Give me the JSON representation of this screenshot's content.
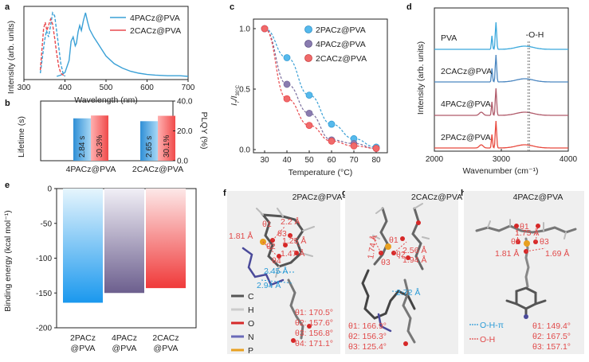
{
  "colors": {
    "blue": "#3aa0d6",
    "red": "#e8494e",
    "purple": "#7a6d9e",
    "blue_marker": "#55b9ec",
    "purple_marker": "#8a7cb0",
    "red_marker": "#f06a6a",
    "pva_line": "#3aa8dc",
    "cacz_line": "#4a86c0",
    "pacz4_line": "#b05a6a",
    "pacz2_line": "#e8493e"
  },
  "panels": {
    "a": "a",
    "b": "b",
    "c": "c",
    "d": "d",
    "e": "e",
    "f": "f",
    "g": "g",
    "h": "h"
  },
  "chart_data": [
    {
      "id": "a",
      "type": "line",
      "ylabel": "Intensity (arb. units)",
      "xlabel": "Wavelength (nm)",
      "xlim": [
        300,
        700
      ],
      "xticks": [
        "300",
        "400",
        "500",
        "600",
        "700"
      ],
      "legend": [
        "4PACz@PVA",
        "2CACz@PVA"
      ],
      "series": [
        {
          "name": "4PACz@PVA (emission)",
          "style": "solid",
          "color": "#3aa0d6",
          "x": [
            380,
            390,
            400,
            410,
            415,
            420,
            425,
            428,
            432,
            436,
            440,
            445,
            450,
            455,
            460,
            470,
            480,
            490,
            500,
            520,
            540,
            560,
            580,
            600,
            620,
            650,
            680,
            700
          ],
          "y": [
            0.0,
            0.02,
            0.06,
            0.25,
            0.55,
            0.62,
            0.48,
            0.52,
            0.7,
            0.8,
            0.72,
            0.88,
            1.0,
            0.86,
            0.74,
            0.62,
            0.52,
            0.42,
            0.32,
            0.2,
            0.13,
            0.08,
            0.05,
            0.03,
            0.02,
            0.01,
            0.01,
            0.0
          ]
        },
        {
          "name": "4PACz@PVA (excitation)",
          "style": "dashed",
          "color": "#3aa0d6",
          "x": [
            340,
            350,
            355,
            360,
            365,
            370,
            375,
            380,
            385,
            390,
            395,
            400
          ],
          "y": [
            0.05,
            0.55,
            0.72,
            0.62,
            0.8,
            1.0,
            0.95,
            0.7,
            0.45,
            0.2,
            0.06,
            0.0
          ]
        },
        {
          "name": "2CACz@PVA (excitation)",
          "style": "dashed",
          "color": "#e8494e",
          "x": [
            340,
            348,
            352,
            356,
            360,
            365,
            370,
            375,
            380,
            385,
            390,
            400
          ],
          "y": [
            0.1,
            0.75,
            0.85,
            0.72,
            0.8,
            0.9,
            0.82,
            0.6,
            0.35,
            0.15,
            0.05,
            0.0
          ]
        }
      ]
    },
    {
      "id": "b",
      "type": "bar",
      "ylabel_left": "Lifetime (s)",
      "ylabel_right": "PLQY (%)",
      "categories": [
        "4PACz@PVA",
        "2CACz@PVA"
      ],
      "lifetime": [
        2.84,
        2.65
      ],
      "plqy": [
        30.3,
        30.1
      ],
      "lifetime_labels": [
        "2.84 s",
        "2.65 s"
      ],
      "plqy_labels": [
        "30.3%",
        "30.1%"
      ],
      "ylim_left": [
        0,
        4
      ],
      "ylim_right": [
        0,
        40
      ],
      "yticks_right": [
        "0.0",
        "20.0",
        "40.0"
      ]
    },
    {
      "id": "c",
      "type": "scatter",
      "ylabel_main": "I",
      "ylabel_sub": "T",
      "ylabel_mid": "/I",
      "ylabel_sub2": "30°C",
      "xlabel": "Temperature (°C)",
      "xlim": [
        25,
        85
      ],
      "ylim": [
        0,
        1.0
      ],
      "xticks": [
        "30",
        "40",
        "50",
        "60",
        "70",
        "80"
      ],
      "yticks": [
        "0.0",
        "0.5",
        "1.0"
      ],
      "x": [
        30,
        40,
        50,
        60,
        70,
        80
      ],
      "series": [
        {
          "name": "2PACz@PVA",
          "values": [
            1.0,
            0.76,
            0.45,
            0.21,
            0.09,
            0.02
          ]
        },
        {
          "name": "4PACz@PVA",
          "values": [
            1.0,
            0.54,
            0.3,
            0.08,
            0.05,
            0.01
          ]
        },
        {
          "name": "2CACz@PVA",
          "values": [
            1.0,
            0.42,
            0.2,
            0.07,
            0.03,
            0.01
          ]
        }
      ]
    },
    {
      "id": "d",
      "type": "line",
      "ylabel": "Intensity (arb. units)",
      "xlabel": "Wavenumber (cm⁻¹)",
      "xlim": [
        2000,
        4000
      ],
      "xticks": [
        "2000",
        "3000",
        "4000"
      ],
      "annotation": "-O-H",
      "annotation_positions": [
        3400,
        3420
      ],
      "series": [
        {
          "name": "PVA"
        },
        {
          "name": "2CACz@PVA"
        },
        {
          "name": "4PACz@PVA"
        },
        {
          "name": "2PACz@PVA"
        }
      ]
    },
    {
      "id": "e",
      "type": "bar",
      "ylabel": "Binding energy (kcal mol⁻¹)",
      "ylim": [
        -200,
        0
      ],
      "yticks": [
        "0",
        "-50",
        "-100",
        "-150",
        "-200"
      ],
      "categories": [
        [
          "2PACz",
          "@PVA"
        ],
        [
          "4PACz",
          "@PVA"
        ],
        [
          "2CACz",
          "@PVA"
        ]
      ],
      "values": [
        -164,
        -150,
        -143
      ]
    }
  ],
  "molecules": {
    "f": {
      "title": "2PACz@PVA",
      "distances_red": [
        "1.81 Å",
        "2.2 Å",
        "1.25 Å",
        "1.47 Å"
      ],
      "distances_blue": [
        "2.45 Å",
        "2.94 Å"
      ],
      "angle_labels": [
        "θ1",
        "θ2",
        "θ3",
        "θ4"
      ],
      "legend": [
        "C",
        "H",
        "O",
        "N",
        "P"
      ],
      "legend_colors": [
        "#555555",
        "#cccccc",
        "#d62828",
        "#6a6ab8",
        "#e8a020"
      ],
      "angles": [
        "θ1: 170.5°",
        "θ2: 157.6°",
        "θ3: 156.8°",
        "θ4: 171.1°"
      ]
    },
    "g": {
      "title": "2CACz@PVA",
      "distances_red": [
        "1.74 Å",
        "2.56 Å",
        "1.94 Å"
      ],
      "distances_blue": [
        "2.72 Å"
      ],
      "angle_labels": [
        "θ1",
        "θ2",
        "θ3"
      ],
      "angles": [
        "θ1: 166.9°",
        "θ2: 156.3°",
        "θ3: 125.4°"
      ]
    },
    "h": {
      "title": "4PACz@PVA",
      "distances_red": [
        "1.75 Å",
        "1.81 Å",
        "1.69 Å"
      ],
      "angle_labels": [
        "θ1",
        "θ2",
        "θ3"
      ],
      "legend": [
        "O-H-π",
        "O-H"
      ],
      "angles": [
        "θ1: 149.4°",
        "θ2: 167.5°",
        "θ3: 157.1°"
      ]
    }
  }
}
